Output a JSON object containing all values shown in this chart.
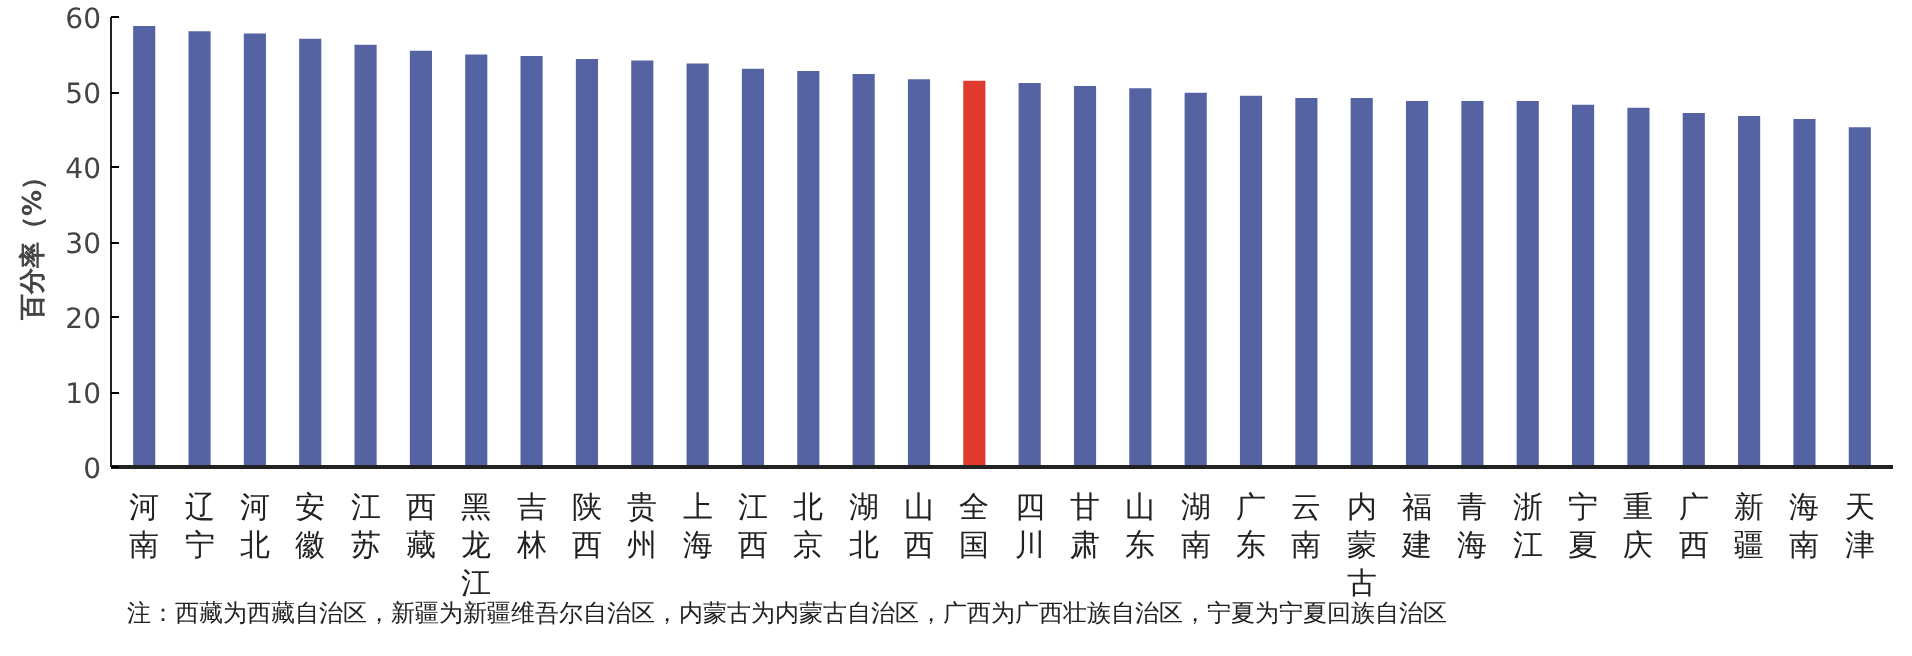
{
  "chart_data": {
    "type": "bar",
    "ylabel": "百分率（%）",
    "categories": [
      "河南",
      "辽宁",
      "河北",
      "安徽",
      "江苏",
      "西藏",
      "黑龙江",
      "吉林",
      "陕西",
      "贵州",
      "上海",
      "江西",
      "北京",
      "湖北",
      "山西",
      "全国",
      "四川",
      "甘肃",
      "山东",
      "湖南",
      "广东",
      "云南",
      "内蒙古",
      "福建",
      "青海",
      "浙江",
      "宁夏",
      "重庆",
      "广西",
      "新疆",
      "海南",
      "天津"
    ],
    "values": [
      58.8,
      58.1,
      57.8,
      57.1,
      56.3,
      55.5,
      55.0,
      54.8,
      54.4,
      54.2,
      53.8,
      53.1,
      52.8,
      52.4,
      51.7,
      51.5,
      51.2,
      50.8,
      50.5,
      49.9,
      49.5,
      49.2,
      49.2,
      48.8,
      48.8,
      48.8,
      48.3,
      47.9,
      47.2,
      46.8,
      46.4,
      45.3
    ],
    "colors": [
      "#5563a3",
      "#5563a3",
      "#5563a3",
      "#5563a3",
      "#5563a3",
      "#5563a3",
      "#5563a3",
      "#5563a3",
      "#5563a3",
      "#5563a3",
      "#5563a3",
      "#5563a3",
      "#5563a3",
      "#5563a3",
      "#5563a3",
      "#e03a2f",
      "#5563a3",
      "#5563a3",
      "#5563a3",
      "#5563a3",
      "#5563a3",
      "#5563a3",
      "#5563a3",
      "#5563a3",
      "#5563a3",
      "#5563a3",
      "#5563a3",
      "#5563a3",
      "#5563a3",
      "#5563a3",
      "#5563a3",
      "#5563a3"
    ],
    "ylim": [
      0,
      60
    ],
    "yticks": [
      0,
      10,
      20,
      30,
      40,
      50,
      60
    ],
    "grid": false,
    "annotations": [
      "注：西藏为西藏自治区，新疆为新疆维吾尔自治区，内蒙古为内蒙古自治区，广西为广西壮族自治区，宁夏为宁夏回族自治区"
    ]
  }
}
